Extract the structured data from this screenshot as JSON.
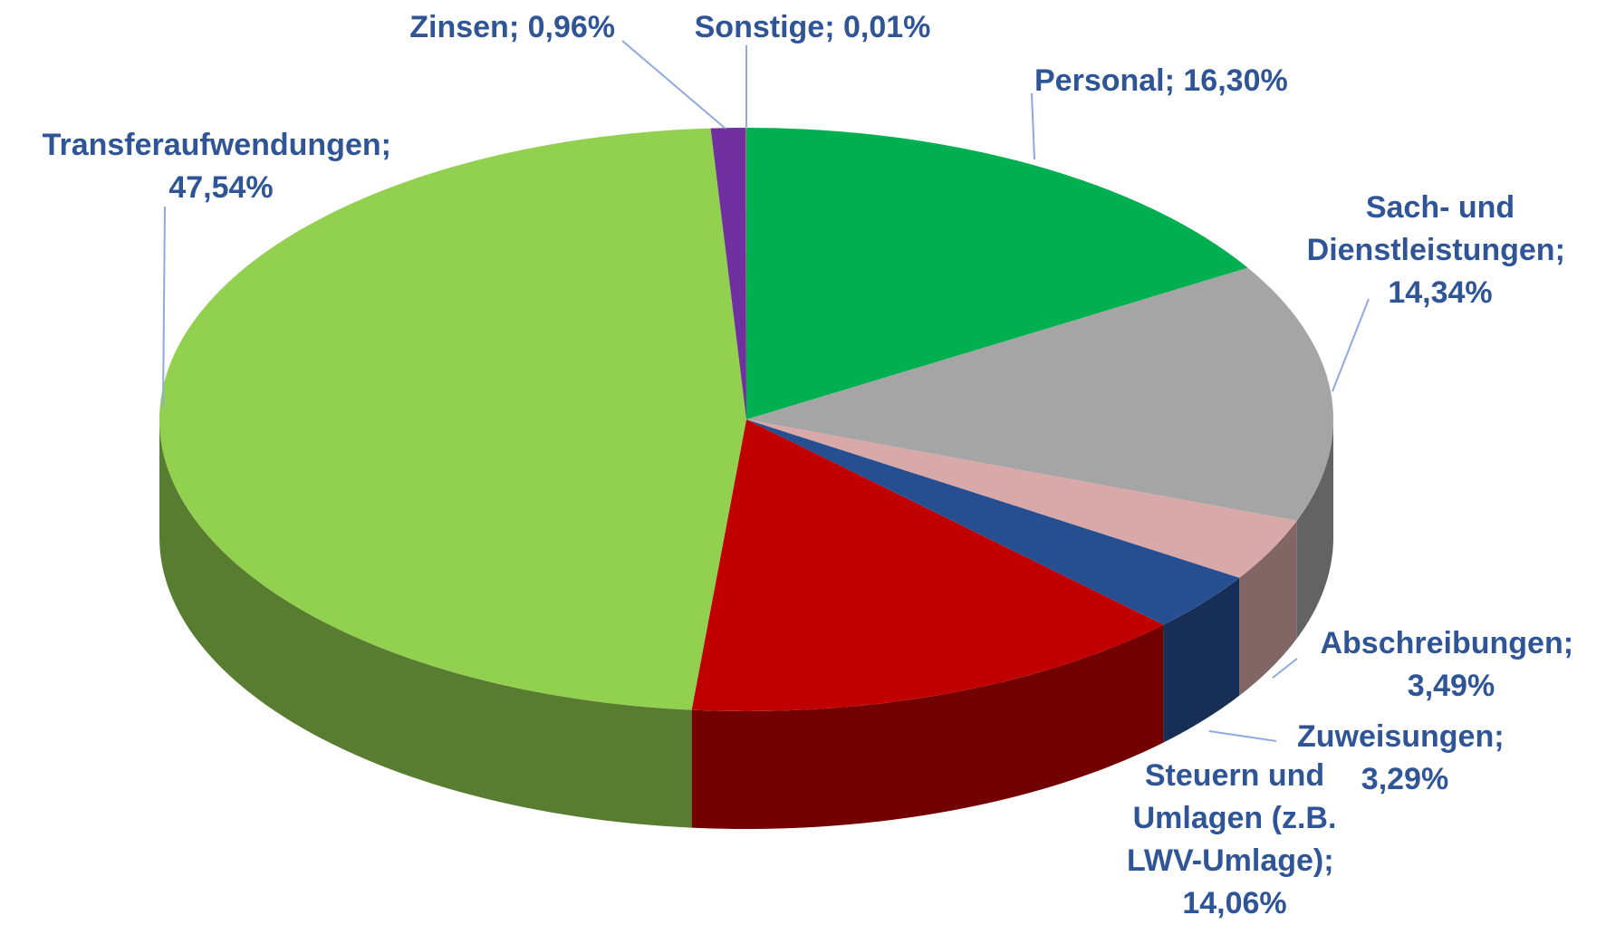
{
  "chart_data": {
    "type": "pie3d",
    "categories": [
      "Personal",
      "Sach- und Dienstleistungen",
      "Abschreibungen",
      "Zuweisungen",
      "Steuern und Umlagen (z.B. LWV-Umlage)",
      "Transferaufwendungen",
      "Zinsen",
      "Sonstige"
    ],
    "values": [
      16.3,
      14.34,
      3.49,
      3.29,
      14.06,
      47.54,
      0.96,
      0.01
    ],
    "value_labels": [
      "16,30%",
      "14,34%",
      "3,49%",
      "3,29%",
      "14,06%",
      "47,54%",
      "0,96%",
      "0,01%"
    ],
    "label_separator": "; ",
    "colors": [
      "#00b050",
      "#a5a5a5",
      "#d9a9a9",
      "#264f91",
      "#c00000",
      "#92d050",
      "#7030a0",
      "#ffc000"
    ]
  }
}
